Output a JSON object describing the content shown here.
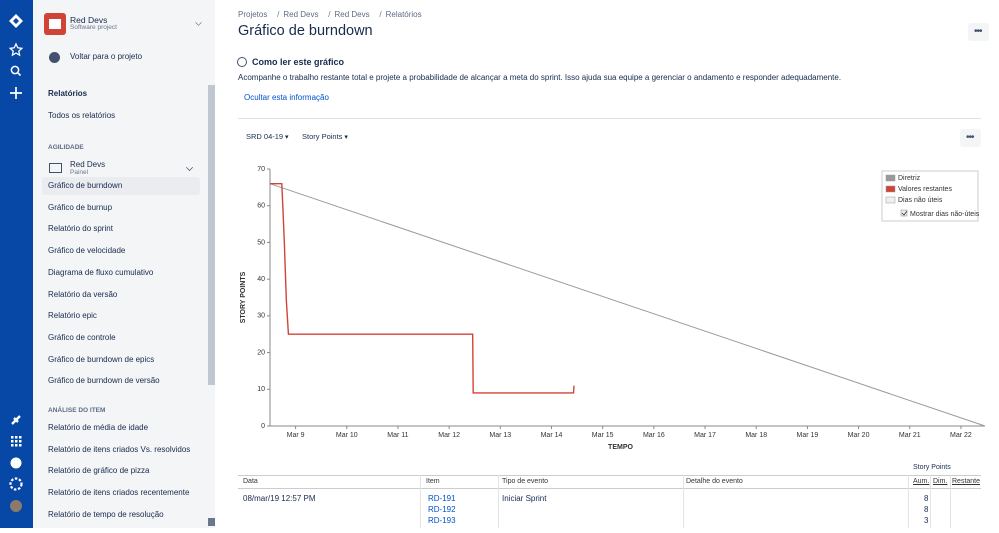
{
  "sidebar": {
    "project": {
      "name": "Red Devs",
      "type": "Software project"
    },
    "back": "Voltar para o projeto",
    "section": "Relatórios",
    "all_reports": "Todos os relatórios",
    "groups": [
      {
        "title": "AGILIDADE",
        "board": {
          "name": "Red Devs",
          "type": "Painel"
        },
        "active": 0,
        "items": [
          "Gráfico de burndown",
          "Gráfico de burnup",
          "Relatório do sprint",
          "Gráfico de velocidade",
          "Diagrama de fluxo cumulativo",
          "Relatório da versão",
          "Relatório epic",
          "Gráfico de controle",
          "Gráfico de burndown de epics",
          "Gráfico de burndown de versão"
        ]
      },
      {
        "title": "ANÁLISE DO ITEM",
        "items": [
          "Relatório de média de idade",
          "Relatório de itens criados Vs. resolvidos",
          "Relatório de gráfico de pizza",
          "Relatório de itens criados recentemente",
          "Relatório de tempo de resolução"
        ]
      }
    ]
  },
  "header": {
    "breadcrumbs": [
      "Projetos",
      "Red Devs",
      "Red Devs",
      "Relatórios"
    ],
    "title": "Gráfico de burndown"
  },
  "info": {
    "title": "Como ler este gráfico",
    "text": "Acompanhe o trabalho restante total e projete a probabilidade de alcançar a meta do sprint. Isso ajuda sua equipe a gerenciar o andamento e responder adequadamente.",
    "hide": "Ocultar esta informação"
  },
  "filters": [
    "SRD 04-19",
    "Story Points"
  ],
  "chart_data": {
    "type": "line",
    "x_label": "TEMPO",
    "y_label": "STORY POINTS",
    "xlim": [
      8.5,
      22.47
    ],
    "ylim": [
      0,
      70
    ],
    "xticks": [
      {
        "value": 9,
        "label": "Mar 9"
      },
      {
        "value": 10,
        "label": "Mar 10"
      },
      {
        "value": 11,
        "label": "Mar 11"
      },
      {
        "value": 12,
        "label": "Mar 12"
      },
      {
        "value": 13,
        "label": "Mar 13"
      },
      {
        "value": 14,
        "label": "Mar 14"
      },
      {
        "value": 15,
        "label": "Mar 15"
      },
      {
        "value": 16,
        "label": "Mar 16"
      },
      {
        "value": 17,
        "label": "Mar 17"
      },
      {
        "value": 18,
        "label": "Mar 18"
      },
      {
        "value": 19,
        "label": "Mar 19"
      },
      {
        "value": 20,
        "label": "Mar 20"
      },
      {
        "value": 21,
        "label": "Mar 21"
      },
      {
        "value": 22,
        "label": "Mar 22"
      }
    ],
    "yticks": [
      0,
      10,
      20,
      30,
      40,
      50,
      60,
      70
    ],
    "grid": false,
    "legend": "top-right",
    "series": [
      {
        "name": "Diretriz",
        "color": "#999999",
        "x": [
          8.5,
          22.47
        ],
        "values": [
          66,
          0
        ]
      },
      {
        "name": "Valores restantes",
        "color": "#d04437",
        "x": [
          8.5,
          8.73,
          8.75,
          8.78,
          8.82,
          8.86,
          12.46,
          12.47,
          14.43,
          14.44
        ],
        "values": [
          66,
          66,
          60,
          50,
          34,
          25,
          25,
          9,
          9,
          11
        ]
      }
    ],
    "non_working_days": {
      "name": "Dias não úteis",
      "color": "#f0f0f0"
    },
    "toggle": "Mostrar dias não-úteis"
  },
  "table": {
    "group_header": "Story Points",
    "columns": [
      "Data",
      "Item",
      "Tipo de evento",
      "Detalhe do evento",
      "Aum.",
      "Dim.",
      "Restante"
    ],
    "rows": [
      {
        "date": "08/mar/19 12:57 PM",
        "items": [
          "RD-191",
          "RD-192",
          "RD-193"
        ],
        "event": "Iniciar Sprint",
        "increase": [
          8,
          8,
          3
        ]
      }
    ]
  }
}
